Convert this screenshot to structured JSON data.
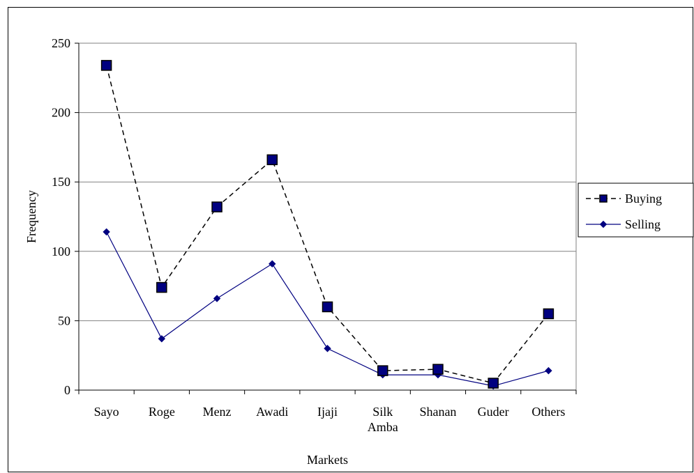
{
  "chart_data": {
    "type": "line",
    "xlabel": "Markets",
    "ylabel": "Frequency",
    "ylim": [
      0,
      250
    ],
    "yticks": [
      0,
      50,
      100,
      150,
      200,
      250
    ],
    "grid": true,
    "legend_position": "right",
    "categories": [
      [
        "Sayo"
      ],
      [
        "Roge"
      ],
      [
        "Menz"
      ],
      [
        "Awadi"
      ],
      [
        "Ijaji"
      ],
      [
        "Silk",
        "Amba"
      ],
      [
        "Shanan"
      ],
      [
        "Guder"
      ],
      [
        "Others"
      ]
    ],
    "series": [
      {
        "name": "Buying",
        "values": [
          234,
          74,
          132,
          166,
          60,
          14,
          15,
          5,
          55
        ],
        "color": "#000080",
        "line_style": "dashed",
        "line_color": "#000000",
        "marker": "square"
      },
      {
        "name": "Selling",
        "values": [
          114,
          37,
          66,
          91,
          30,
          11,
          11,
          3,
          14
        ],
        "color": "#000080",
        "line_style": "solid",
        "line_color": "#000080",
        "marker": "diamond"
      }
    ]
  }
}
